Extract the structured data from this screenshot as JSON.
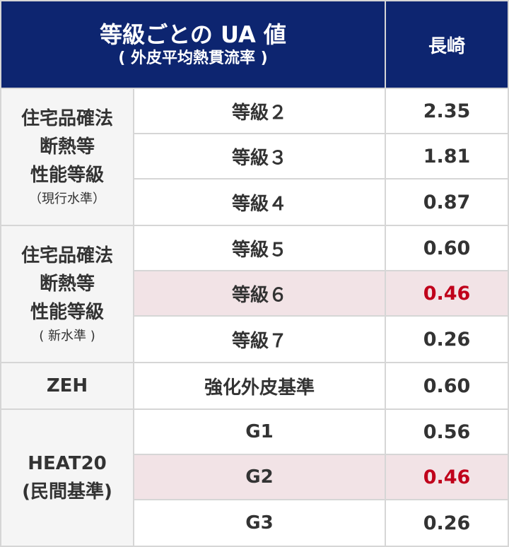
{
  "header": {
    "title": "等級ごとの UA 値",
    "subtitle": "( 外皮平均熱貫流率 )",
    "region": "長崎"
  },
  "groups": [
    {
      "lines": [
        "住宅品確法",
        "断熱等",
        "性能等級"
      ],
      "note": "（現行水準）",
      "rows": [
        {
          "grade": "等級２",
          "value": "2.35"
        },
        {
          "grade": "等級３",
          "value": "1.81"
        },
        {
          "grade": "等級４",
          "value": "0.87"
        }
      ]
    },
    {
      "lines": [
        "住宅品確法",
        "断熱等",
        "性能等級"
      ],
      "note": "( 新水準 )",
      "rows": [
        {
          "grade": "等級５",
          "value": "0.60"
        },
        {
          "grade": "等級６",
          "value": "0.46",
          "highlight": true
        },
        {
          "grade": "等級７",
          "value": "0.26"
        }
      ]
    },
    {
      "lines": [
        "ZEH"
      ],
      "rows": [
        {
          "grade": "強化外皮基準",
          "value": "0.60"
        }
      ]
    },
    {
      "lines": [
        "HEAT20",
        "(民間基準)"
      ],
      "rows": [
        {
          "grade": "G1",
          "value": "0.56"
        },
        {
          "grade": "G2",
          "value": "0.46",
          "highlight": true
        },
        {
          "grade": "G3",
          "value": "0.26"
        }
      ]
    }
  ],
  "colors": {
    "header_bg": "#0d2570",
    "highlight_bg": "#f2e3e6",
    "highlight_text": "#c0001b",
    "category_bg": "#f5f5f5"
  }
}
